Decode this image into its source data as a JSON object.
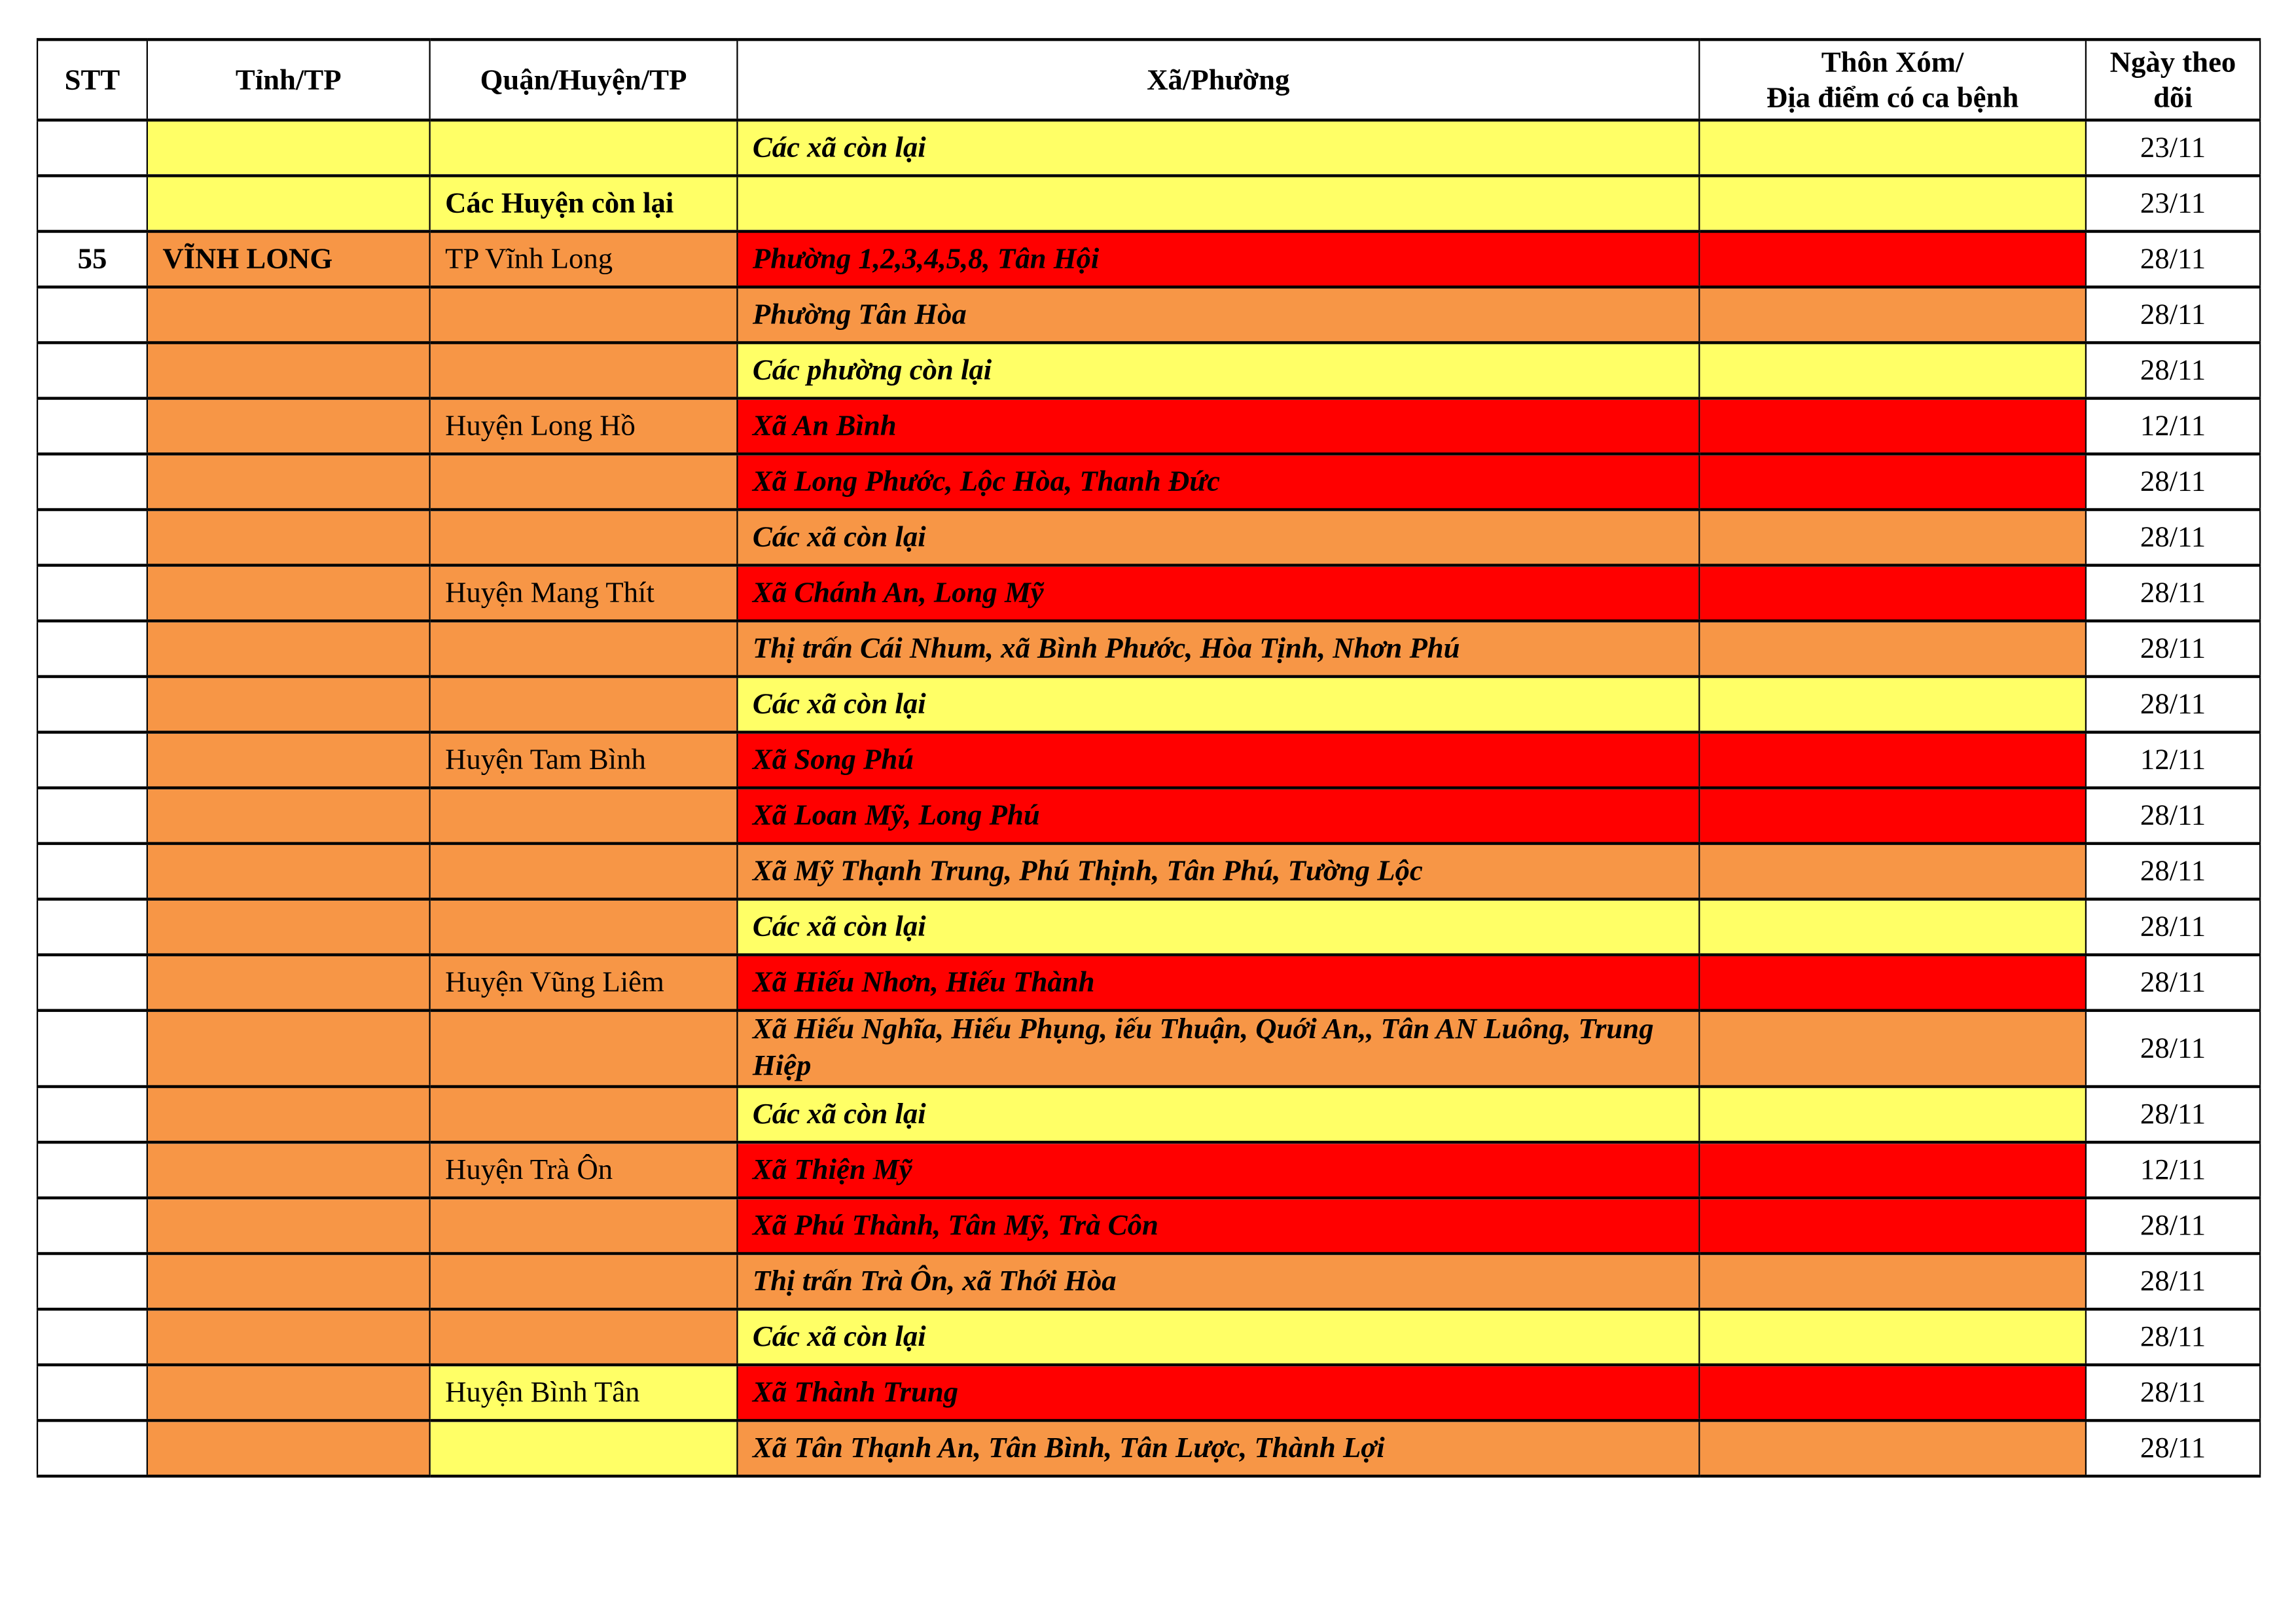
{
  "colors": {
    "Y": "#FFFF66",
    "O": "#F79646",
    "R": "#FF0000",
    "W": "#FFFFFF"
  },
  "headers": [
    "STT",
    "Tỉnh/TP",
    "Quận/Huyện/TP",
    "Xã/Phường",
    "Thôn Xóm/\nĐịa điểm có ca bệnh",
    "Ngày theo dõi"
  ],
  "rows": [
    {
      "stt": "",
      "tinh": "",
      "quan": "",
      "xa": "Các xã còn lại",
      "ngay": "23/11",
      "fill": [
        "W",
        "Y",
        "Y",
        "Y",
        "Y"
      ]
    },
    {
      "stt": "",
      "tinh": "",
      "quan": "Các Huyện còn lại",
      "xa": "",
      "ngay": "23/11",
      "fill": [
        "W",
        "Y",
        "Y",
        "Y",
        "Y"
      ],
      "quan_bold": true
    },
    {
      "stt": "55",
      "tinh": "VĨNH LONG",
      "quan": "TP Vĩnh Long",
      "xa": "Phường 1,2,3,4,5,8, Tân Hội",
      "ngay": "28/11",
      "fill": [
        "W",
        "O",
        "O",
        "R",
        "R"
      ]
    },
    {
      "stt": "",
      "tinh": "",
      "quan": "",
      "xa": "Phường Tân Hòa",
      "ngay": "28/11",
      "fill": [
        "W",
        "O",
        "O",
        "O",
        "O"
      ]
    },
    {
      "stt": "",
      "tinh": "",
      "quan": "",
      "xa": "Các phường còn lại",
      "ngay": "28/11",
      "fill": [
        "W",
        "O",
        "O",
        "Y",
        "Y"
      ]
    },
    {
      "stt": "",
      "tinh": "",
      "quan": "Huyện Long Hồ",
      "xa": "Xã An Bình",
      "ngay": "12/11",
      "fill": [
        "W",
        "O",
        "O",
        "R",
        "R"
      ]
    },
    {
      "stt": "",
      "tinh": "",
      "quan": "",
      "xa": "Xã Long Phước, Lộc Hòa, Thanh Đức",
      "ngay": "28/11",
      "fill": [
        "W",
        "O",
        "O",
        "R",
        "R"
      ]
    },
    {
      "stt": "",
      "tinh": "",
      "quan": "",
      "xa": "Các xã còn lại",
      "ngay": "28/11",
      "fill": [
        "W",
        "O",
        "O",
        "O",
        "O"
      ]
    },
    {
      "stt": "",
      "tinh": "",
      "quan": "Huyện Mang Thít",
      "xa": "Xã Chánh An, Long Mỹ",
      "ngay": "28/11",
      "fill": [
        "W",
        "O",
        "O",
        "R",
        "R"
      ]
    },
    {
      "stt": "",
      "tinh": "",
      "quan": "",
      "xa": "Thị trấn Cái Nhum, xã Bình Phước, Hòa Tịnh, Nhơn Phú",
      "ngay": "28/11",
      "fill": [
        "W",
        "O",
        "O",
        "O",
        "O"
      ]
    },
    {
      "stt": "",
      "tinh": "",
      "quan": "",
      "xa": "Các xã còn lại",
      "ngay": "28/11",
      "fill": [
        "W",
        "O",
        "O",
        "Y",
        "Y"
      ]
    },
    {
      "stt": "",
      "tinh": "",
      "quan": "Huyện Tam Bình",
      "xa": "Xã Song Phú",
      "ngay": "12/11",
      "fill": [
        "W",
        "O",
        "O",
        "R",
        "R"
      ]
    },
    {
      "stt": "",
      "tinh": "",
      "quan": "",
      "xa": "Xã Loan Mỹ, Long Phú",
      "ngay": "28/11",
      "fill": [
        "W",
        "O",
        "O",
        "R",
        "R"
      ]
    },
    {
      "stt": "",
      "tinh": "",
      "quan": "",
      "xa": "Xã Mỹ Thạnh Trung, Phú Thịnh, Tân Phú, Tường Lộc",
      "ngay": "28/11",
      "fill": [
        "W",
        "O",
        "O",
        "O",
        "O"
      ]
    },
    {
      "stt": "",
      "tinh": "",
      "quan": "",
      "xa": "Các xã còn lại",
      "ngay": "28/11",
      "fill": [
        "W",
        "O",
        "O",
        "Y",
        "Y"
      ]
    },
    {
      "stt": "",
      "tinh": "",
      "quan": "Huyện Vũng Liêm",
      "xa": "Xã Hiếu Nhơn, Hiếu Thành",
      "ngay": "28/11",
      "fill": [
        "W",
        "O",
        "O",
        "R",
        "R"
      ]
    },
    {
      "stt": "",
      "tinh": "",
      "quan": "",
      "xa": "Xã Hiếu Nghĩa, Hiếu Phụng, iếu Thuận, Quới An,, Tân AN Luông, Trung Hiệp",
      "ngay": "28/11",
      "fill": [
        "W",
        "O",
        "O",
        "O",
        "O"
      ],
      "tall": true
    },
    {
      "stt": "",
      "tinh": "",
      "quan": "",
      "xa": "Các xã còn lại",
      "ngay": "28/11",
      "fill": [
        "W",
        "O",
        "O",
        "Y",
        "Y"
      ]
    },
    {
      "stt": "",
      "tinh": "",
      "quan": "Huyện Trà Ôn",
      "xa": "Xã Thiện Mỹ",
      "ngay": "12/11",
      "fill": [
        "W",
        "O",
        "O",
        "R",
        "R"
      ]
    },
    {
      "stt": "",
      "tinh": "",
      "quan": "",
      "xa": "Xã Phú Thành, Tân Mỹ, Trà Côn",
      "ngay": "28/11",
      "fill": [
        "W",
        "O",
        "O",
        "R",
        "R"
      ]
    },
    {
      "stt": "",
      "tinh": "",
      "quan": "",
      "xa": "Thị trấn Trà Ôn, xã Thới Hòa",
      "ngay": "28/11",
      "fill": [
        "W",
        "O",
        "O",
        "O",
        "O"
      ]
    },
    {
      "stt": "",
      "tinh": "",
      "quan": "",
      "xa": "Các xã còn lại",
      "ngay": "28/11",
      "fill": [
        "W",
        "O",
        "O",
        "Y",
        "Y"
      ]
    },
    {
      "stt": "",
      "tinh": "",
      "quan": "Huyện Bình Tân",
      "xa": "Xã Thành Trung",
      "ngay": "28/11",
      "fill": [
        "W",
        "O",
        "Y",
        "R",
        "R"
      ]
    },
    {
      "stt": "",
      "tinh": "",
      "quan": "",
      "xa": "Xã Tân Thạnh An, Tân Bình, Tân Lược, Thành Lợi",
      "ngay": "28/11",
      "fill": [
        "W",
        "O",
        "Y",
        "O",
        "O"
      ]
    }
  ]
}
